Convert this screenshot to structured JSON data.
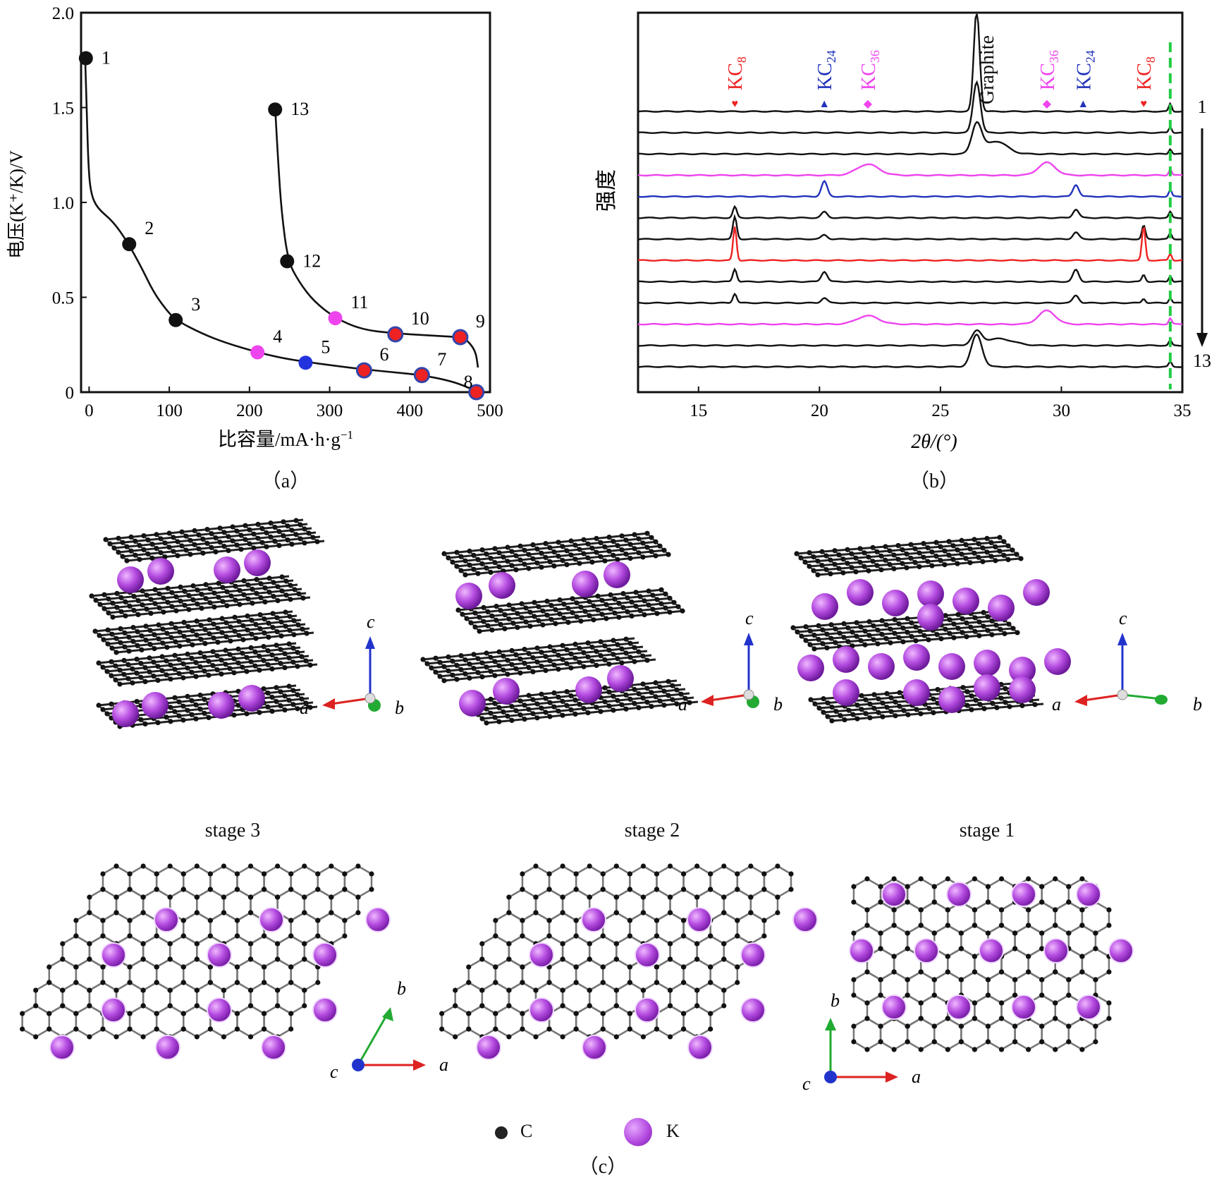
{
  "chart_data": [
    {
      "id": "a",
      "type": "line",
      "caption": "（a）",
      "xlabel": "比容量/mA·h·g",
      "xlabel_sup": "−1",
      "ylabel": "电压(K⁺/K)/V",
      "xlim": [
        -10,
        500
      ],
      "ylim": [
        0,
        2.0
      ],
      "xticks": [
        "0",
        "100",
        "200",
        "300",
        "400",
        "500"
      ],
      "yticks": [
        "0",
        "0.5",
        "1.0",
        "1.5",
        "2.0"
      ],
      "discharge_curve": [
        [
          -5,
          1.77
        ],
        [
          -3,
          1.5
        ],
        [
          -1,
          1.2
        ],
        [
          2,
          1.05
        ],
        [
          10,
          0.97
        ],
        [
          30,
          0.9
        ],
        [
          48,
          0.79
        ],
        [
          65,
          0.66
        ],
        [
          80,
          0.53
        ],
        [
          95,
          0.44
        ],
        [
          108,
          0.38
        ],
        [
          140,
          0.31
        ],
        [
          170,
          0.26
        ],
        [
          210,
          0.21
        ],
        [
          240,
          0.18
        ],
        [
          270,
          0.16
        ],
        [
          305,
          0.14
        ],
        [
          343,
          0.12
        ],
        [
          380,
          0.105
        ],
        [
          415,
          0.09
        ],
        [
          450,
          0.06
        ],
        [
          470,
          0.03
        ],
        [
          485,
          0.0
        ]
      ],
      "charge_curve": [
        [
          485,
          0.13
        ],
        [
          482,
          0.22
        ],
        [
          470,
          0.28
        ],
        [
          463,
          0.29
        ],
        [
          420,
          0.3
        ],
        [
          380,
          0.31
        ],
        [
          340,
          0.33
        ],
        [
          307,
          0.39
        ],
        [
          280,
          0.48
        ],
        [
          262,
          0.58
        ],
        [
          248,
          0.69
        ],
        [
          240,
          0.95
        ],
        [
          236,
          1.2
        ],
        [
          232,
          1.5
        ]
      ],
      "points": [
        {
          "label": "1",
          "x": -4,
          "y": 1.76,
          "color": "#111111"
        },
        {
          "label": "2",
          "x": 50,
          "y": 0.78,
          "color": "#111111"
        },
        {
          "label": "3",
          "x": 108,
          "y": 0.38,
          "color": "#111111"
        },
        {
          "label": "4",
          "x": 210,
          "y": 0.21,
          "color": "#ee44ee"
        },
        {
          "label": "5",
          "x": 270,
          "y": 0.155,
          "color": "#2233dd"
        },
        {
          "label": "6",
          "x": 343,
          "y": 0.115,
          "color": "#ee2222"
        },
        {
          "label": "7",
          "x": 415,
          "y": 0.09,
          "color": "#ee2222"
        },
        {
          "label": "8",
          "x": 483,
          "y": 0.0,
          "color": "#ee2222"
        },
        {
          "label": "9",
          "x": 463,
          "y": 0.29,
          "color": "#ee2222"
        },
        {
          "label": "10",
          "x": 382,
          "y": 0.305,
          "color": "#ee2222"
        },
        {
          "label": "11",
          "x": 307,
          "y": 0.39,
          "color": "#ee44ee"
        },
        {
          "label": "12",
          "x": 247,
          "y": 0.69,
          "color": "#111111"
        },
        {
          "label": "13",
          "x": 232,
          "y": 1.49,
          "color": "#111111"
        }
      ]
    },
    {
      "id": "b",
      "type": "line",
      "caption": "（b）",
      "xlabel": "2θ/(°)",
      "ylabel": "强度",
      "xlim": [
        12.5,
        35
      ],
      "xticks": [
        "15",
        "20",
        "25",
        "30",
        "35"
      ],
      "dashed_line_x": 34.5,
      "dashed_color": "#22cc44",
      "order_top": "1",
      "order_bottom": "13",
      "phase_labels": [
        {
          "text": "KC",
          "sub": "8",
          "x": 16.5,
          "color": "#ee2222",
          "marker": "♥"
        },
        {
          "text": "KC",
          "sub": "24",
          "x": 20.2,
          "color": "#2233bb",
          "marker": "▲"
        },
        {
          "text": "KC",
          "sub": "36",
          "x": 22.0,
          "color": "#ee44ee",
          "marker": "◆"
        },
        {
          "text": "Graphite",
          "sub": "",
          "x": 26.9,
          "color": "#111111",
          "marker": ""
        },
        {
          "text": "KC",
          "sub": "36",
          "x": 29.4,
          "color": "#ee44ee",
          "marker": "◆"
        },
        {
          "text": "KC",
          "sub": "24",
          "x": 30.9,
          "color": "#2233bb",
          "marker": "▲"
        },
        {
          "text": "KC",
          "sub": "8",
          "x": 33.4,
          "color": "#ee2222",
          "marker": "♥"
        }
      ],
      "series": [
        {
          "name": "1",
          "color": "#111111",
          "peaks": [
            [
              26.5,
              12.0,
              0.12
            ],
            [
              34.5,
              0.9,
              0.06
            ]
          ]
        },
        {
          "name": "2",
          "color": "#111111",
          "peaks": [
            [
              26.5,
              6.0,
              0.15
            ],
            [
              34.5,
              0.7,
              0.06
            ]
          ]
        },
        {
          "name": "3",
          "color": "#111111",
          "peaks": [
            [
              26.5,
              3.5,
              0.2
            ],
            [
              27.3,
              1.5,
              0.45
            ],
            [
              34.5,
              0.6,
              0.06
            ]
          ]
        },
        {
          "name": "4",
          "color": "#ee44ee",
          "peaks": [
            [
              22.0,
              1.3,
              0.45
            ],
            [
              29.4,
              1.5,
              0.35
            ],
            [
              34.5,
              0.7,
              0.06
            ]
          ]
        },
        {
          "name": "5",
          "color": "#2233bb",
          "peaks": [
            [
              20.2,
              1.8,
              0.12
            ],
            [
              30.6,
              1.4,
              0.12
            ],
            [
              34.5,
              0.8,
              0.06
            ]
          ]
        },
        {
          "name": "6",
          "color": "#111111",
          "peaks": [
            [
              16.5,
              1.3,
              0.08
            ],
            [
              20.2,
              0.7,
              0.12
            ],
            [
              30.6,
              1.0,
              0.12
            ],
            [
              34.5,
              0.7,
              0.06
            ]
          ]
        },
        {
          "name": "7",
          "color": "#111111",
          "peaks": [
            [
              16.5,
              2.6,
              0.08
            ],
            [
              20.2,
              0.5,
              0.12
            ],
            [
              30.6,
              0.8,
              0.12
            ],
            [
              33.4,
              1.6,
              0.07
            ],
            [
              34.5,
              0.7,
              0.06
            ]
          ]
        },
        {
          "name": "8",
          "color": "#ee2222",
          "peaks": [
            [
              16.5,
              4.0,
              0.07
            ],
            [
              33.4,
              4.0,
              0.07
            ],
            [
              34.5,
              0.8,
              0.06
            ]
          ]
        },
        {
          "name": "9",
          "color": "#111111",
          "peaks": [
            [
              16.5,
              1.5,
              0.08
            ],
            [
              20.2,
              1.2,
              0.12
            ],
            [
              30.6,
              1.4,
              0.12
            ],
            [
              33.4,
              0.8,
              0.07
            ],
            [
              34.5,
              0.7,
              0.06
            ]
          ]
        },
        {
          "name": "10",
          "color": "#111111",
          "peaks": [
            [
              16.5,
              1.1,
              0.08
            ],
            [
              20.2,
              0.6,
              0.12
            ],
            [
              30.6,
              0.9,
              0.12
            ],
            [
              33.4,
              0.5,
              0.07
            ],
            [
              34.5,
              0.6,
              0.06
            ]
          ]
        },
        {
          "name": "11",
          "color": "#ee44ee",
          "peaks": [
            [
              22.0,
              1.0,
              0.45
            ],
            [
              29.4,
              1.6,
              0.35
            ],
            [
              34.5,
              0.7,
              0.06
            ]
          ]
        },
        {
          "name": "12",
          "color": "#111111",
          "peaks": [
            [
              26.5,
              1.5,
              0.2
            ],
            [
              27.4,
              0.8,
              0.6
            ],
            [
              34.5,
              0.6,
              0.06
            ]
          ]
        },
        {
          "name": "13",
          "color": "#111111",
          "peaks": [
            [
              26.5,
              3.8,
              0.22
            ],
            [
              34.5,
              0.6,
              0.06
            ]
          ]
        }
      ]
    }
  ],
  "panel_c": {
    "caption": "（c）",
    "stages": [
      "stage 3",
      "stage 2",
      "stage 1"
    ],
    "axes": {
      "a": "a",
      "b": "b",
      "c": "c"
    },
    "axis_colors": {
      "a": "#dd2222",
      "b": "#22aa33",
      "c": "#2233cc"
    },
    "legend": [
      {
        "label": "C",
        "color": "#222222"
      },
      {
        "label": "K",
        "color": "#b44be0"
      }
    ]
  }
}
